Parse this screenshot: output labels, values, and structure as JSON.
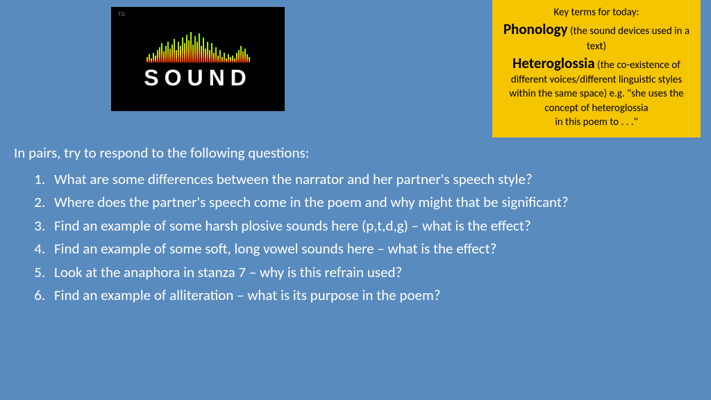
{
  "soundImage": {
    "smallLabel": "TD",
    "mainText": "SOUND",
    "waveHeights": [
      8,
      12,
      6,
      14,
      10,
      18,
      22,
      28,
      16,
      24,
      30,
      20,
      26,
      34,
      18,
      30,
      24,
      36,
      28,
      40,
      32,
      44,
      26,
      38,
      30,
      42,
      24,
      36,
      20,
      30,
      18,
      28,
      14,
      22,
      10,
      18,
      8,
      14,
      6,
      12,
      8,
      10,
      6,
      14,
      18,
      24,
      16,
      20,
      12,
      8
    ]
  },
  "keyTerms": {
    "header": "Key terms for today:",
    "term1": "Phonology",
    "def1": " (the sound devices used in a text)",
    "term2": "Heteroglossia",
    "def2": " (the co-existence of different voices/different linguistic styles within the same space) e.g. \"she uses the concept of heteroglossia",
    "def2b": "in this poem to . . .\""
  },
  "content": {
    "intro": "In pairs, try to respond to the following questions:",
    "questions": [
      "What are some differences between the narrator and her partner's speech style?",
      " Where does the partner's speech come in the poem and why might that be significant?",
      "Find an example of some harsh plosive sounds here (p,t,d,g) – what is the effect?",
      "Find an example of some soft, long vowel sounds here – what is the effect?",
      "Look at the anaphora in stanza 7 – why is this refrain used?",
      "Find an example of alliteration – what is its purpose in the poem?"
    ]
  }
}
